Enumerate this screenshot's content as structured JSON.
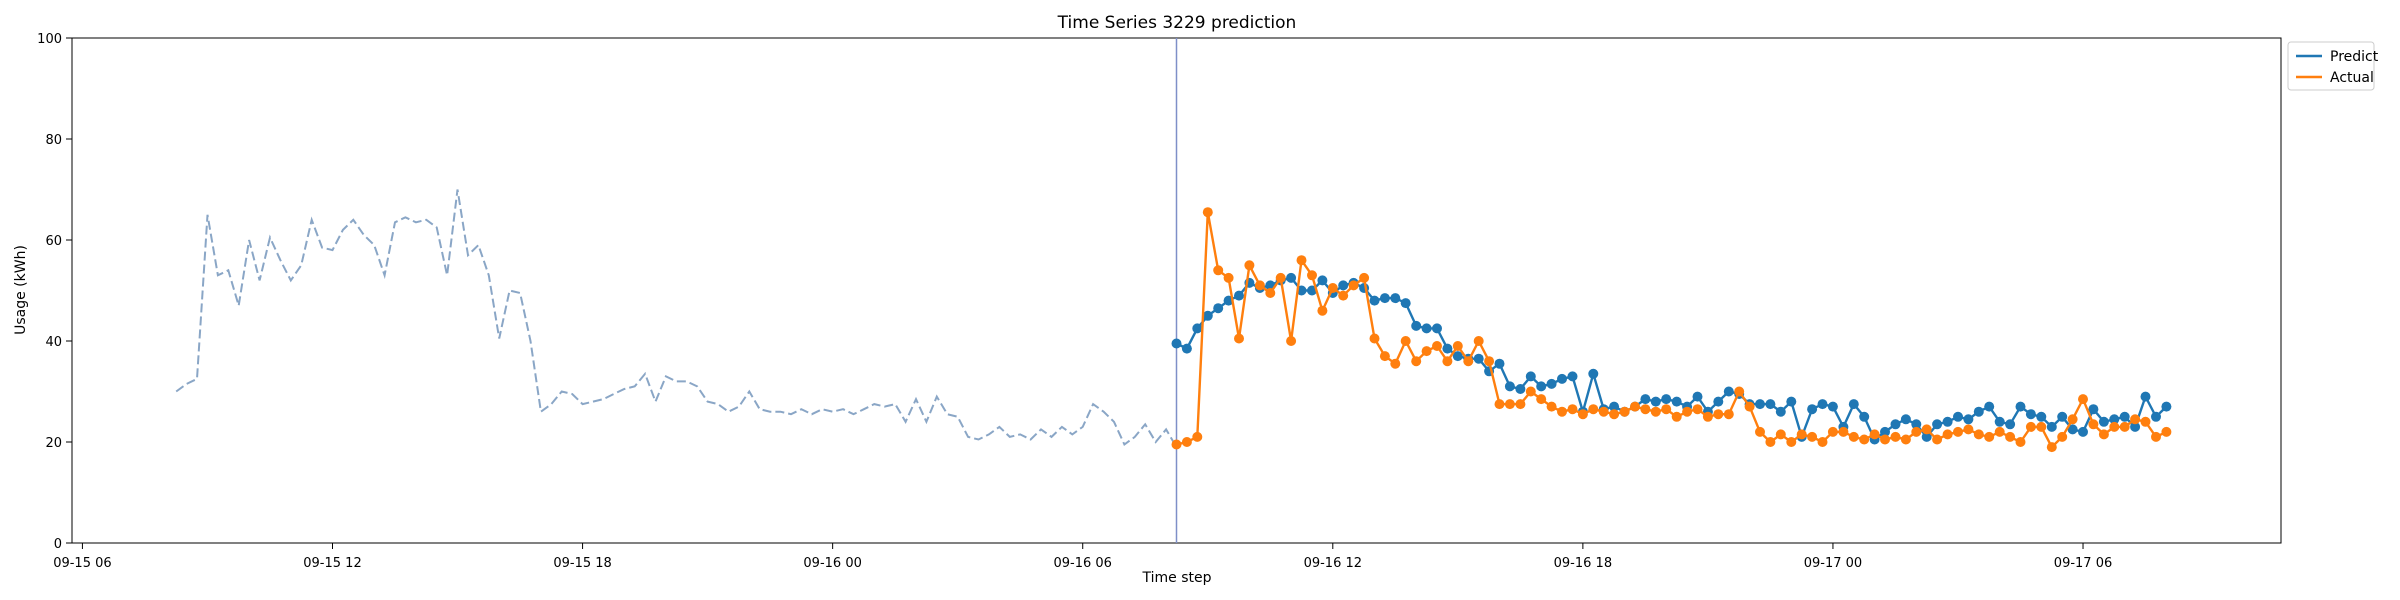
{
  "chart_data": {
    "type": "line",
    "title": "Time Series 3229 prediction",
    "xlabel": "Time step",
    "ylabel": "Usage (kWh)",
    "ylim": [
      0,
      100
    ],
    "xlim": [
      "2022-09-15T05:45",
      "2022-09-17T10:45"
    ],
    "x_step_minutes": 15,
    "yticks": [
      0,
      20,
      40,
      60,
      80,
      100
    ],
    "xticks": [
      {
        "x": "2022-09-15T06:00",
        "label": "09-15 06"
      },
      {
        "x": "2022-09-15T12:00",
        "label": "09-15 12"
      },
      {
        "x": "2022-09-15T18:00",
        "label": "09-15 18"
      },
      {
        "x": "2022-09-16T00:00",
        "label": "09-16 00"
      },
      {
        "x": "2022-09-16T06:00",
        "label": "09-16 06"
      },
      {
        "x": "2022-09-16T12:00",
        "label": "09-16 12"
      },
      {
        "x": "2022-09-16T18:00",
        "label": "09-16 18"
      },
      {
        "x": "2022-09-17T00:00",
        "label": "09-17 00"
      },
      {
        "x": "2022-09-17T06:00",
        "label": "09-17 06"
      }
    ],
    "grid": false,
    "legend_position": "upper-right-outside",
    "forecast_start": "2022-09-16T08:15",
    "history": {
      "name": "",
      "start": "2022-09-15T08:15",
      "color": "#8aa6c6",
      "style": "dashed",
      "values": [
        30,
        31.5,
        32.5,
        65,
        53,
        54,
        47,
        60,
        52,
        60.5,
        56,
        52,
        55,
        64,
        58.5,
        58,
        62,
        64,
        61,
        59,
        53,
        63.5,
        64.5,
        63.5,
        64,
        62.5,
        53,
        70,
        57,
        59,
        53,
        40.5,
        50,
        49.5,
        40,
        26,
        27.5,
        30,
        29.5,
        27.5,
        28,
        28.5,
        29.5,
        30.5,
        31,
        33.5,
        28,
        33,
        32,
        32,
        31,
        28,
        27.5,
        26,
        27,
        30,
        26.5,
        26,
        26,
        25.5,
        26.5,
        25.5,
        26.5,
        26,
        26.5,
        25.5,
        26.5,
        27.5,
        27,
        27.5,
        24,
        28.5,
        24,
        29,
        25.5,
        25,
        21,
        20.5,
        21.5,
        23,
        21,
        21.5,
        20.5,
        22.5,
        21,
        23,
        21.5,
        23,
        27.5,
        26,
        24,
        19.5,
        21,
        23.5,
        20,
        22.5,
        19
      ]
    },
    "series": [
      {
        "name": "Predict",
        "start": "2022-09-16T08:15",
        "color": "#1f77b4",
        "marker": "circle",
        "values": [
          39.5,
          38.5,
          42.5,
          45,
          46.5,
          48,
          49,
          51.5,
          50.5,
          51,
          52,
          52.5,
          50,
          50,
          52,
          49.5,
          51,
          51.5,
          50.5,
          48,
          48.5,
          48.5,
          47.5,
          43,
          42.5,
          42.5,
          38.5,
          37,
          36.5,
          36.5,
          34,
          35.5,
          31,
          30.5,
          33,
          31,
          31.5,
          32.5,
          33,
          26,
          33.5,
          26.5,
          27,
          26,
          27,
          28.5,
          28,
          28.5,
          28,
          27,
          29,
          26,
          28,
          30,
          29.5,
          27.5,
          27.5,
          27.5,
          26,
          28,
          21,
          26.5,
          27.5,
          27,
          23,
          27.5,
          25,
          20.5,
          22,
          23.5,
          24.5,
          23.5,
          21,
          23.5,
          24,
          25,
          24.5,
          26,
          27,
          24,
          23.5,
          27,
          25.5,
          25,
          23,
          25,
          22.5,
          22,
          26.5,
          24,
          24.5,
          25,
          23,
          29,
          25,
          27
        ]
      },
      {
        "name": "Actual",
        "start": "2022-09-16T08:15",
        "color": "#ff7f0e",
        "marker": "circle",
        "values": [
          19.5,
          20,
          21,
          65.5,
          54,
          52.5,
          40.5,
          55,
          51,
          49.5,
          52.5,
          40,
          56,
          53,
          46,
          50.5,
          49,
          51,
          52.5,
          40.5,
          37,
          35.5,
          40,
          36,
          38,
          39,
          36,
          39,
          36,
          40,
          36,
          27.5,
          27.5,
          27.5,
          30,
          28.5,
          27,
          26,
          26.5,
          25.5,
          26.5,
          26,
          25.5,
          26,
          27,
          26.5,
          26,
          26.5,
          25,
          26,
          26.5,
          25,
          25.5,
          25.5,
          30,
          27,
          22,
          20,
          21.5,
          20,
          21.5,
          21,
          20,
          22,
          22,
          21,
          20.5,
          21.5,
          20.5,
          21,
          20.5,
          22,
          22.5,
          20.5,
          21.5,
          22,
          22.5,
          21.5,
          21,
          22,
          21,
          20,
          23,
          23,
          19,
          21,
          24.5,
          28.5,
          23.5,
          21.5,
          23,
          23,
          24.5,
          24,
          21,
          22
        ]
      }
    ],
    "legend": [
      {
        "name": "Predict",
        "color": "#1f77b4"
      },
      {
        "name": "Actual",
        "color": "#ff7f0e"
      }
    ]
  }
}
